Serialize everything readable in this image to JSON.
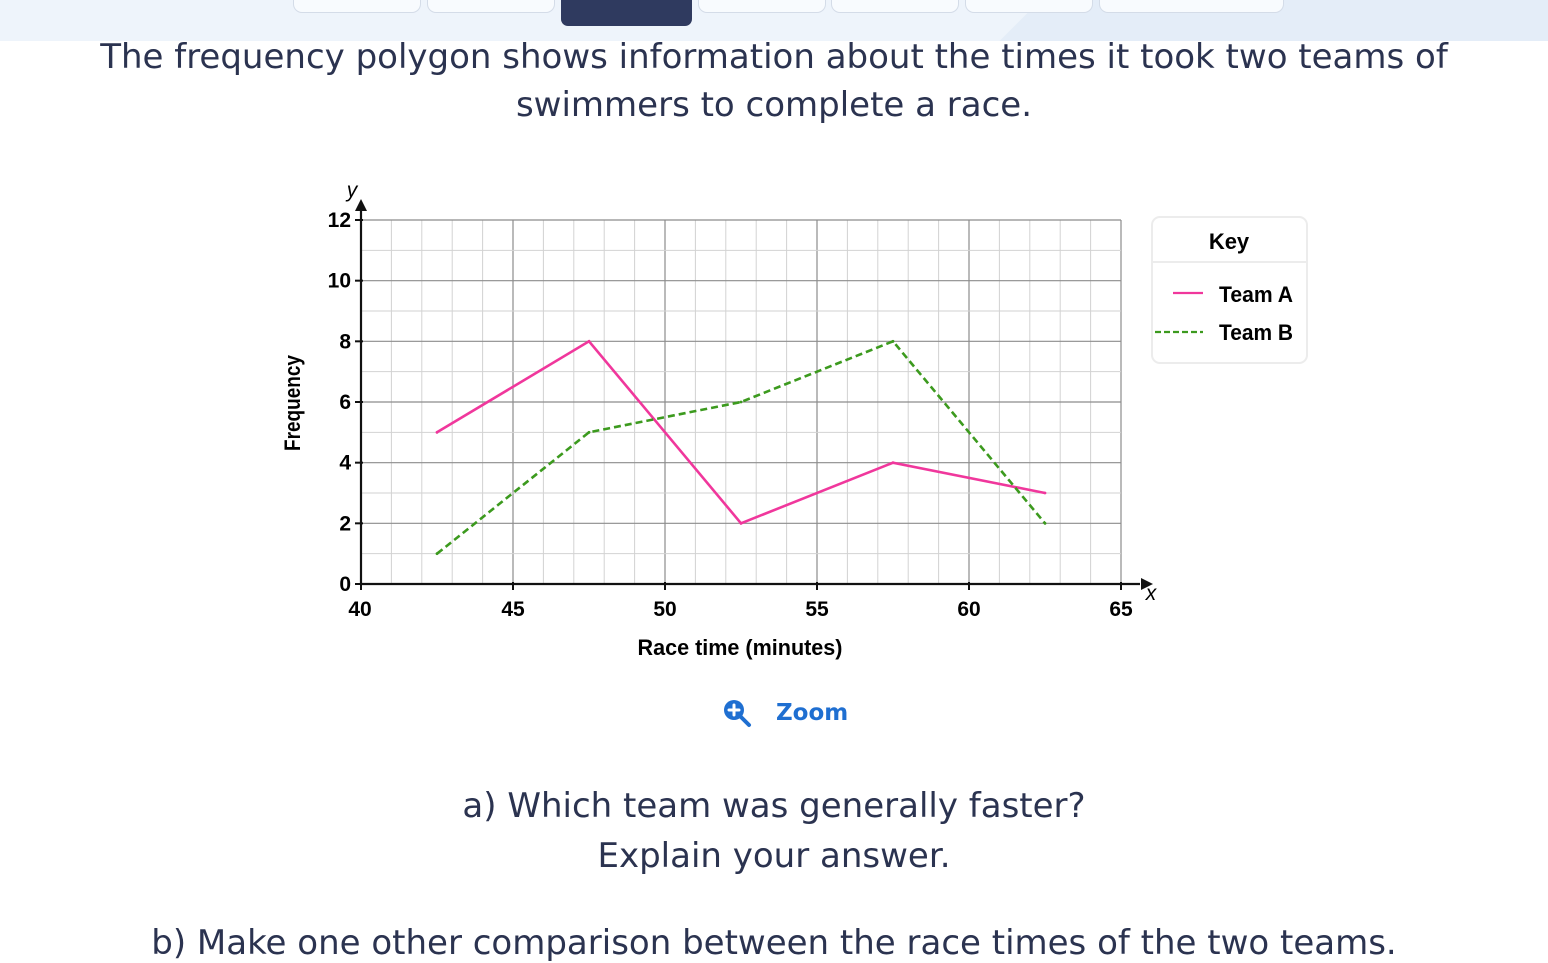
{
  "question": {
    "intro_line1": "The frequency polygon shows information about the times it took two teams of",
    "intro_line2": "swimmers to complete a race.",
    "part_a_line1": "a) Which team was generally faster?",
    "part_a_line2": "Explain your answer.",
    "part_b": "b) Make one other comparison between the race times of the two teams."
  },
  "zoom": {
    "label": "Zoom",
    "icon": "zoom-in-icon"
  },
  "colors": {
    "team_a": "#f0379c",
    "team_b": "#3c9a1e",
    "text": "#2b3350",
    "link": "#1f6fd1"
  },
  "chart_data": {
    "type": "line",
    "xlabel": "Race time (minutes)",
    "ylabel": "Frequency",
    "x_axis_symbol": "x",
    "y_axis_symbol": "y",
    "xlim": [
      40,
      65
    ],
    "ylim": [
      0,
      12
    ],
    "x_ticks": [
      "40",
      "45",
      "50",
      "55",
      "60",
      "65"
    ],
    "y_ticks": [
      "0",
      "2",
      "4",
      "6",
      "8",
      "10",
      "12"
    ],
    "grid": true,
    "legend": {
      "title": "Key",
      "position": "right"
    },
    "series": [
      {
        "name": "Team A",
        "style": "solid",
        "points": [
          [
            42.5,
            5
          ],
          [
            47.5,
            8
          ],
          [
            52.5,
            2
          ],
          [
            57.5,
            4
          ],
          [
            62.5,
            3
          ]
        ]
      },
      {
        "name": "Team B",
        "style": "dashed",
        "points": [
          [
            42.5,
            1
          ],
          [
            47.5,
            5
          ],
          [
            52.5,
            6
          ],
          [
            57.5,
            8
          ],
          [
            62.5,
            2
          ]
        ]
      }
    ]
  }
}
